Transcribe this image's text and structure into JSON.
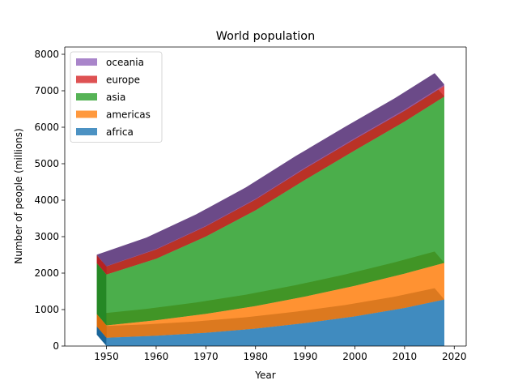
{
  "chart_data": {
    "type": "area",
    "title": "World population",
    "xlabel": "Year",
    "ylabel": "Number of people (millions)",
    "x": [
      1950,
      1960,
      1970,
      1980,
      1990,
      2000,
      2010,
      2018
    ],
    "xlim": [
      1941.6,
      2022.4
    ],
    "ylim": [
      0,
      8200
    ],
    "xticks": [
      1950,
      1960,
      1970,
      1980,
      1990,
      2000,
      2010,
      2020
    ],
    "yticks": [
      0,
      1000,
      2000,
      3000,
      4000,
      5000,
      6000,
      7000,
      8000
    ],
    "stacked": true,
    "series": [
      {
        "name": "africa",
        "color": "#1f77b4",
        "values": [
          228,
          284,
          365,
          477,
          631,
          814,
          1044,
          1275
        ]
      },
      {
        "name": "americas",
        "color": "#ff7f0e",
        "values": [
          340,
          425,
          519,
          619,
          727,
          840,
          943,
          1006
        ]
      },
      {
        "name": "asia",
        "color": "#2ca02c",
        "values": [
          1394,
          1686,
          2120,
          2625,
          3202,
          3714,
          4169,
          4560
        ]
      },
      {
        "name": "europe",
        "color": "#d62728",
        "values": [
          220,
          253,
          276,
          295,
          310,
          303,
          294,
          293
        ]
      },
      {
        "name": "oceania",
        "color": "#9467bd",
        "values": [
          12,
          15,
          19,
          22,
          26,
          31,
          36,
          39
        ]
      }
    ],
    "legend_position": "top-left",
    "legend_order": [
      "oceania",
      "europe",
      "asia",
      "americas",
      "africa"
    ],
    "grid": false
  }
}
